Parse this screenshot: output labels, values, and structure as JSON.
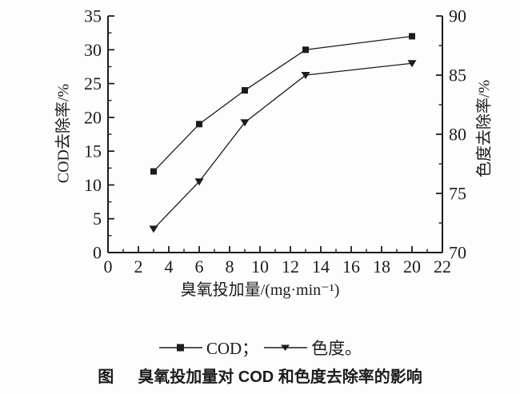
{
  "chart_data": {
    "type": "line",
    "x": [
      3,
      6,
      9,
      13,
      20
    ],
    "series": [
      {
        "name": "COD",
        "marker": "square",
        "axis": "left",
        "values": [
          12,
          19,
          24,
          30,
          32
        ]
      },
      {
        "name": "色度",
        "marker": "triangle-down",
        "axis": "right",
        "values": [
          72,
          76,
          81,
          85,
          86
        ]
      }
    ],
    "x_axis": {
      "label": "臭氧投加量/(mg·min⁻¹)",
      "min": 0,
      "max": 22,
      "major_step": 2,
      "minor_step": 1,
      "ticks": [
        0,
        2,
        4,
        6,
        8,
        10,
        12,
        14,
        16,
        18,
        20,
        22
      ]
    },
    "y_left": {
      "label": "COD去除率/%",
      "min": 0,
      "max": 35,
      "major_step": 5,
      "minor_step": 2.5,
      "ticks": [
        0,
        5,
        10,
        15,
        20,
        25,
        30,
        35
      ]
    },
    "y_right": {
      "label": "色度去除率/%",
      "min": 70,
      "max": 90,
      "major_step": 5,
      "minor_step": 2.5,
      "ticks": [
        70,
        75,
        80,
        85,
        90
      ]
    },
    "grid": false,
    "legend_position": "below"
  },
  "legend": {
    "items": [
      {
        "label": "COD；",
        "marker": "square"
      },
      {
        "label": "色度。",
        "marker": "triangle-down"
      }
    ]
  },
  "caption": {
    "prefix": "图",
    "text": "臭氧投加量对 COD 和色度去除率的影响"
  },
  "colors": {
    "ink": "#1c1c1c",
    "background": "#fdfdfd"
  }
}
